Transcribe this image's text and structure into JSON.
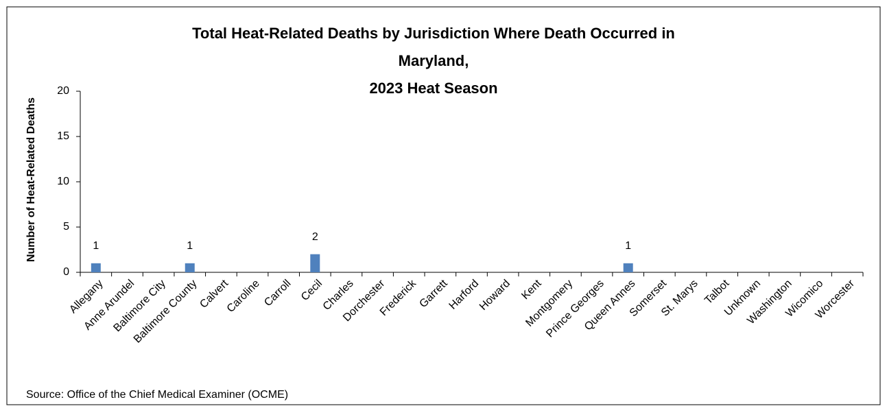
{
  "chart_data": {
    "type": "bar",
    "title": [
      "Total Heat-Related Deaths by Jurisdiction Where Death Occurred in",
      "Maryland,",
      "2023 Heat Season"
    ],
    "y_label": "Number of Heat-Related Deaths",
    "source": "Source: Office of the Chief Medical Examiner (OCME)",
    "categories": [
      "Allegany",
      "Anne Arundel",
      "Baltimore City",
      "Baltimore County",
      "Calvert",
      "Caroline",
      "Carroll",
      "Cecil",
      "Charles",
      "Dorchester",
      "Frederick",
      "Garrett",
      "Harford",
      "Howard",
      "Kent",
      "Montgomery",
      "Prince Georges",
      "Queen Annes",
      "Somerset",
      "St. Marys",
      "Talbot",
      "Unknown",
      "Washington",
      "Wicomico",
      "Worcester"
    ],
    "values": [
      1,
      0,
      0,
      1,
      0,
      0,
      0,
      2,
      0,
      0,
      0,
      0,
      0,
      0,
      0,
      0,
      0,
      1,
      0,
      0,
      0,
      0,
      0,
      0,
      0
    ],
    "color": "#4f81bd",
    "ylim": [
      0,
      20
    ],
    "yticks": [
      0,
      5,
      10,
      15,
      20
    ],
    "grid": false
  }
}
